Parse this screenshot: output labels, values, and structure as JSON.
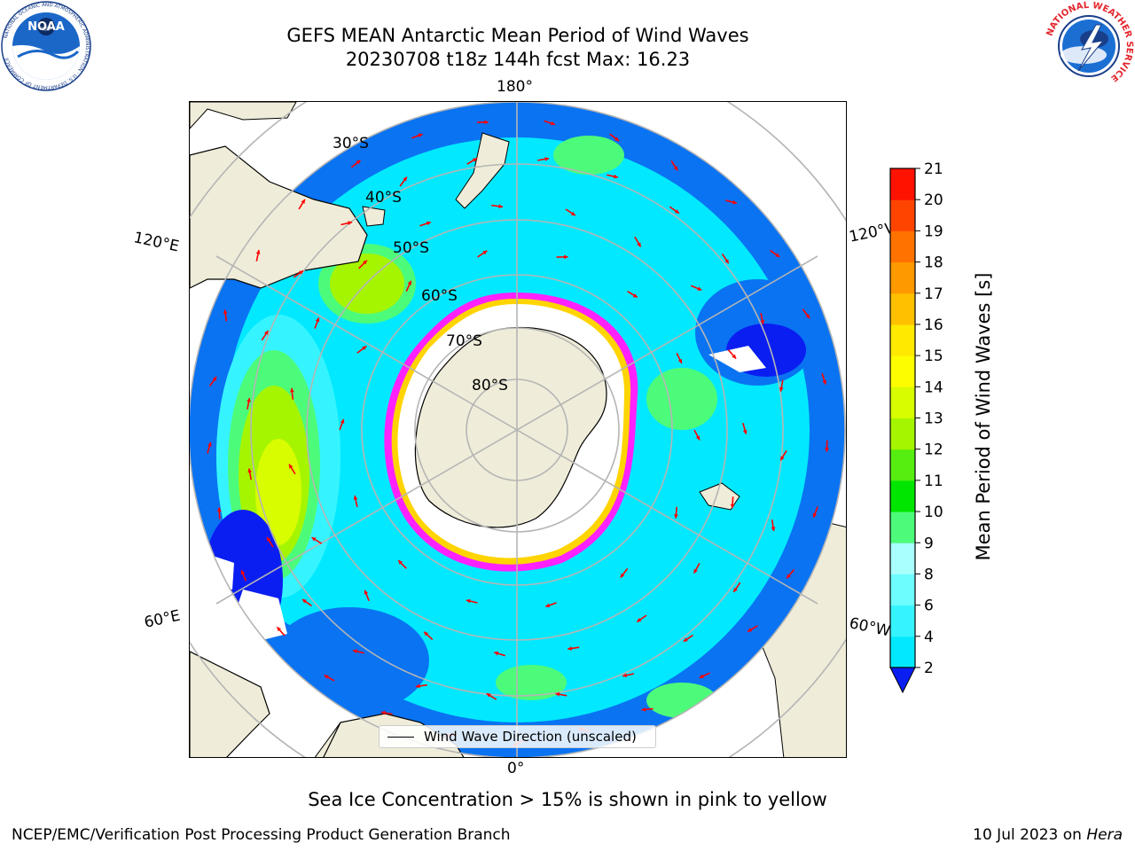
{
  "header": {
    "title_line1": "GEFS MEAN Antarctic Mean Period of Wind Waves",
    "title_line2": "20230708 t18z 144h fcst   Max: 16.23"
  },
  "logos": {
    "noaa_text": "NOAA",
    "noaa_ring_text": "NATIONAL OCEANIC AND ATMOSPHERIC ADMINISTRATION · U.S. DEPARTMENT OF COMMERCE",
    "nws_ring_text": "NATIONAL WEATHER SERVICE"
  },
  "map": {
    "projection": "south-polar-stereographic",
    "longitude_labels": {
      "top": "180°",
      "bottom": "0°",
      "upper_left": "120°E",
      "upper_right": "120°W",
      "lower_left": "60°E",
      "lower_right": "60°W"
    },
    "latitude_labels": [
      "30°S",
      "40°S",
      "50°S",
      "60°S",
      "70°S",
      "80°S"
    ],
    "land_color": "#efedd9",
    "gridline_color": "#b5b5b5",
    "arrow_color": "#ff0000",
    "ice_edge_colors": [
      "#ff22ff",
      "#ffd400"
    ]
  },
  "colorbar": {
    "label": "Mean Period of Wind Waves [s]",
    "ticks": [
      "2",
      "4",
      "6",
      "8",
      "9",
      "10",
      "11",
      "12",
      "13",
      "14",
      "15",
      "16",
      "17",
      "18",
      "19",
      "20",
      "21"
    ],
    "colors": [
      "#0a73f2",
      "#02e9ff",
      "#36f4ff",
      "#6dfdfe",
      "#a9fffe",
      "#4dfb7a",
      "#00e600",
      "#56ee10",
      "#a6f500",
      "#d8fc00",
      "#fdfd00",
      "#ffe900",
      "#ffc000",
      "#ff9900",
      "#ff7200",
      "#ff4400",
      "#ff1200"
    ],
    "extend_color": "#0a1ef2"
  },
  "legend": {
    "label": "Wind Wave Direction (unscaled)"
  },
  "note": "Sea Ice Concentration > 15% is shown in pink to yellow",
  "footer": {
    "left": "NCEP/EMC/Verification Post Processing Product Generation Branch",
    "date": "10 Jul 2023 on ",
    "machine": "Hera"
  }
}
